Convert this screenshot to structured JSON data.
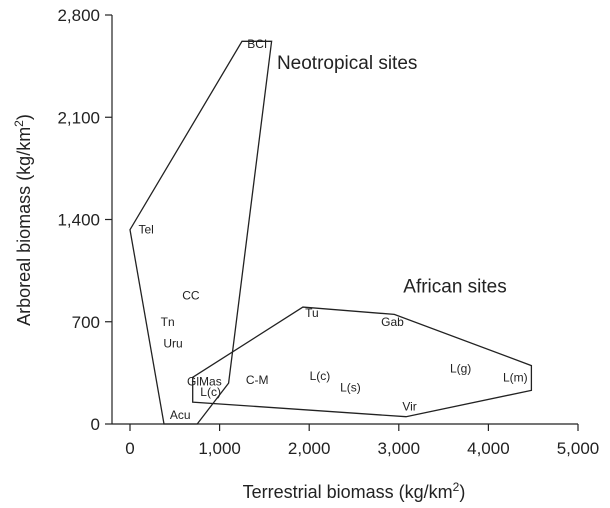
{
  "chart_data": {
    "type": "scatter",
    "xlabel": {
      "main": "Terrestrial biomass (kg/km",
      "sup": "2",
      "close": ")"
    },
    "ylabel": {
      "main": "Arboreal biomass (kg/km",
      "sup": "2",
      "close": ")"
    },
    "xlim": [
      0,
      5000
    ],
    "ylim": [
      0,
      2800
    ],
    "x_ticks": [
      {
        "value": 0,
        "label": "0"
      },
      {
        "value": 1000,
        "label": "1,000"
      },
      {
        "value": 2000,
        "label": "2,000"
      },
      {
        "value": 3000,
        "label": "3,000"
      },
      {
        "value": 4000,
        "label": "4,000"
      },
      {
        "value": 5000,
        "label": "5,000"
      }
    ],
    "y_ticks": [
      {
        "value": 0,
        "label": "0"
      },
      {
        "value": 700,
        "label": "700"
      },
      {
        "value": 1400,
        "label": "1,400"
      },
      {
        "value": 2100,
        "label": "2,100"
      },
      {
        "value": 2800,
        "label": "2,800"
      }
    ],
    "groups": [
      {
        "label": "Neotropical sites",
        "label_at": [
          1640,
          2430
        ],
        "hull": [
          [
            1250,
            2620
          ],
          [
            1580,
            2620
          ],
          [
            1100,
            280
          ],
          [
            750,
            0
          ],
          [
            380,
            0
          ],
          [
            0,
            1330
          ]
        ]
      },
      {
        "label": "African sites",
        "label_at": [
          3050,
          900
        ],
        "hull": [
          [
            700,
            320
          ],
          [
            1930,
            800
          ],
          [
            2950,
            750
          ],
          [
            4480,
            400
          ],
          [
            4480,
            230
          ],
          [
            3080,
            50
          ],
          [
            700,
            150
          ]
        ]
      }
    ],
    "sites": [
      {
        "label": "BCI",
        "x": 1420,
        "y": 2600
      },
      {
        "label": "Tel",
        "x": 180,
        "y": 1330
      },
      {
        "label": "CC",
        "x": 680,
        "y": 880
      },
      {
        "label": "Tn",
        "x": 420,
        "y": 700
      },
      {
        "label": "Uru",
        "x": 480,
        "y": 550
      },
      {
        "label": "GlMas",
        "x": 830,
        "y": 290
      },
      {
        "label": "L(c)",
        "x": 900,
        "y": 220
      },
      {
        "label": "Acu",
        "x": 560,
        "y": 60
      },
      {
        "label": "C-M",
        "x": 1420,
        "y": 300
      },
      {
        "label": "L(c)",
        "x": 2120,
        "y": 330
      },
      {
        "label": "L(s)",
        "x": 2460,
        "y": 250
      },
      {
        "label": "Tu",
        "x": 2030,
        "y": 760
      },
      {
        "label": "Gab",
        "x": 2930,
        "y": 700
      },
      {
        "label": "L(g)",
        "x": 3690,
        "y": 380
      },
      {
        "label": "L(m)",
        "x": 4300,
        "y": 320
      },
      {
        "label": "Vir",
        "x": 3120,
        "y": 120
      }
    ]
  }
}
